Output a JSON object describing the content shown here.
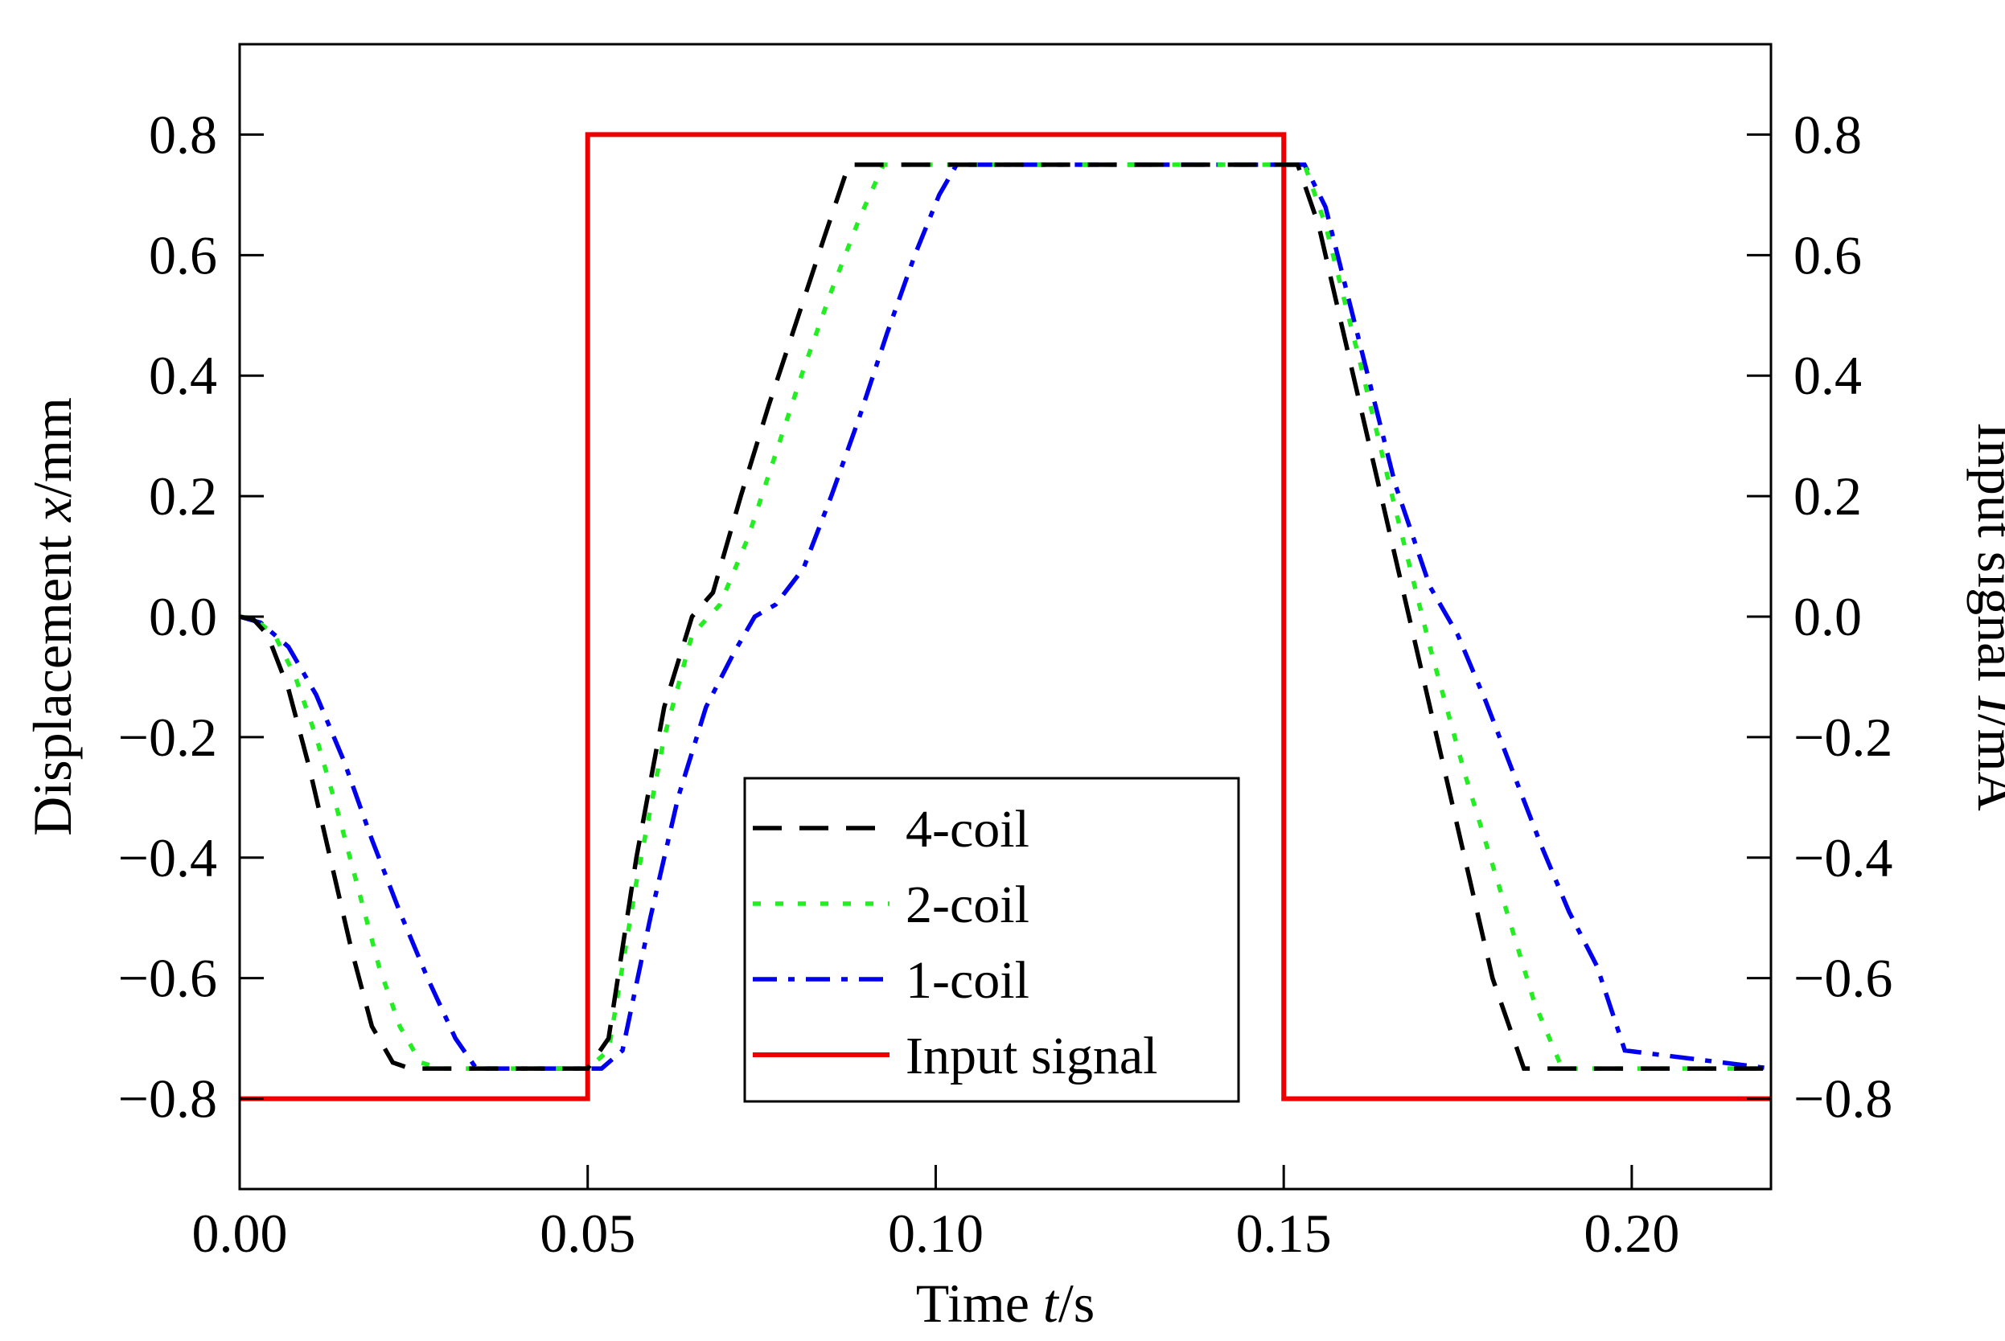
{
  "chart_data": {
    "type": "line",
    "title": "",
    "xlabel": {
      "prefix": "Time ",
      "var": "t",
      "suffix": "/s"
    },
    "ylabel_left": {
      "prefix": "Displacement ",
      "var": "x",
      "suffix": "/mm"
    },
    "ylabel_right": {
      "prefix": "Input signal ",
      "var": "I",
      "suffix": "/mA"
    },
    "xlim": [
      0,
      0.22
    ],
    "ylim": [
      -0.95,
      0.95
    ],
    "grid": false,
    "legend_position": "bottom-center",
    "x_ticks": [
      {
        "value": 0.0,
        "label": "0.00"
      },
      {
        "value": 0.05,
        "label": "0.05"
      },
      {
        "value": 0.1,
        "label": "0.10"
      },
      {
        "value": 0.15,
        "label": "0.15"
      },
      {
        "value": 0.2,
        "label": "0.20"
      }
    ],
    "y_ticks": [
      {
        "value": 0.8,
        "label": "0.8"
      },
      {
        "value": 0.6,
        "label": "0.6"
      },
      {
        "value": 0.4,
        "label": "0.4"
      },
      {
        "value": 0.2,
        "label": "0.2"
      },
      {
        "value": 0.0,
        "label": "0.0"
      },
      {
        "value": -0.2,
        "label": "−0.2"
      },
      {
        "value": -0.4,
        "label": "−0.4"
      },
      {
        "value": -0.6,
        "label": "−0.6"
      },
      {
        "value": -0.8,
        "label": "−0.8"
      }
    ],
    "series": [
      {
        "name": "4-coil",
        "color": "#000000",
        "dash": "long-dash",
        "x": [
          0,
          0.002,
          0.004,
          0.007,
          0.01,
          0.013,
          0.016,
          0.019,
          0.022,
          0.0245,
          0.05,
          0.053,
          0.057,
          0.061,
          0.065,
          0.068,
          0.072,
          0.076,
          0.08,
          0.084,
          0.0875,
          0.152,
          0.155,
          0.16,
          0.165,
          0.17,
          0.175,
          0.18,
          0.1845,
          0.22
        ],
        "y": [
          0,
          -0.005,
          -0.03,
          -0.12,
          -0.25,
          -0.4,
          -0.55,
          -0.68,
          -0.74,
          -0.75,
          -0.75,
          -0.7,
          -0.4,
          -0.15,
          0.0,
          0.04,
          0.2,
          0.35,
          0.49,
          0.63,
          0.75,
          0.75,
          0.65,
          0.4,
          0.15,
          -0.1,
          -0.35,
          -0.6,
          -0.75,
          -0.75
        ]
      },
      {
        "name": "2-coil",
        "color": "#22ee22",
        "dash": "dots",
        "x": [
          0,
          0.002,
          0.005,
          0.008,
          0.011,
          0.014,
          0.017,
          0.02,
          0.023,
          0.026,
          0.029,
          0.05,
          0.053,
          0.057,
          0.061,
          0.065,
          0.069,
          0.073,
          0.077,
          0.081,
          0.085,
          0.089,
          0.0925,
          0.153,
          0.156,
          0.161,
          0.166,
          0.171,
          0.176,
          0.181,
          0.186,
          0.19,
          0.22
        ],
        "y": [
          0,
          -0.003,
          -0.03,
          -0.1,
          -0.2,
          -0.32,
          -0.45,
          -0.58,
          -0.68,
          -0.74,
          -0.75,
          -0.75,
          -0.72,
          -0.44,
          -0.2,
          -0.03,
          0.02,
          0.13,
          0.27,
          0.41,
          0.54,
          0.66,
          0.75,
          0.75,
          0.65,
          0.42,
          0.18,
          -0.05,
          -0.26,
          -0.45,
          -0.64,
          -0.75,
          -0.75
        ]
      },
      {
        "name": "1-coil",
        "color": "#0000ee",
        "dash": "dash-dot",
        "x": [
          0,
          0.003,
          0.007,
          0.011,
          0.015,
          0.019,
          0.023,
          0.027,
          0.031,
          0.034,
          0.036,
          0.052,
          0.055,
          0.059,
          0.063,
          0.067,
          0.071,
          0.074,
          0.077,
          0.081,
          0.085,
          0.089,
          0.093,
          0.097,
          0.1005,
          0.103,
          0.153,
          0.156,
          0.161,
          0.166,
          0.171,
          0.175,
          0.179,
          0.183,
          0.187,
          0.191,
          0.195,
          0.199,
          0.22
        ],
        "y": [
          0,
          -0.01,
          -0.05,
          -0.13,
          -0.24,
          -0.37,
          -0.49,
          -0.6,
          -0.7,
          -0.75,
          -0.75,
          -0.75,
          -0.72,
          -0.5,
          -0.3,
          -0.15,
          -0.06,
          0.0,
          0.02,
          0.08,
          0.2,
          0.33,
          0.47,
          0.6,
          0.7,
          0.75,
          0.75,
          0.68,
          0.45,
          0.22,
          0.05,
          -0.03,
          -0.14,
          -0.26,
          -0.38,
          -0.49,
          -0.58,
          -0.72,
          -0.75
        ]
      },
      {
        "name": "Input signal",
        "color": "#ee0000",
        "dash": "solid",
        "x": [
          0,
          0.05,
          0.05,
          0.15,
          0.15,
          0.22
        ],
        "y": [
          -0.8,
          -0.8,
          0.8,
          0.8,
          -0.8,
          -0.8
        ]
      }
    ]
  }
}
